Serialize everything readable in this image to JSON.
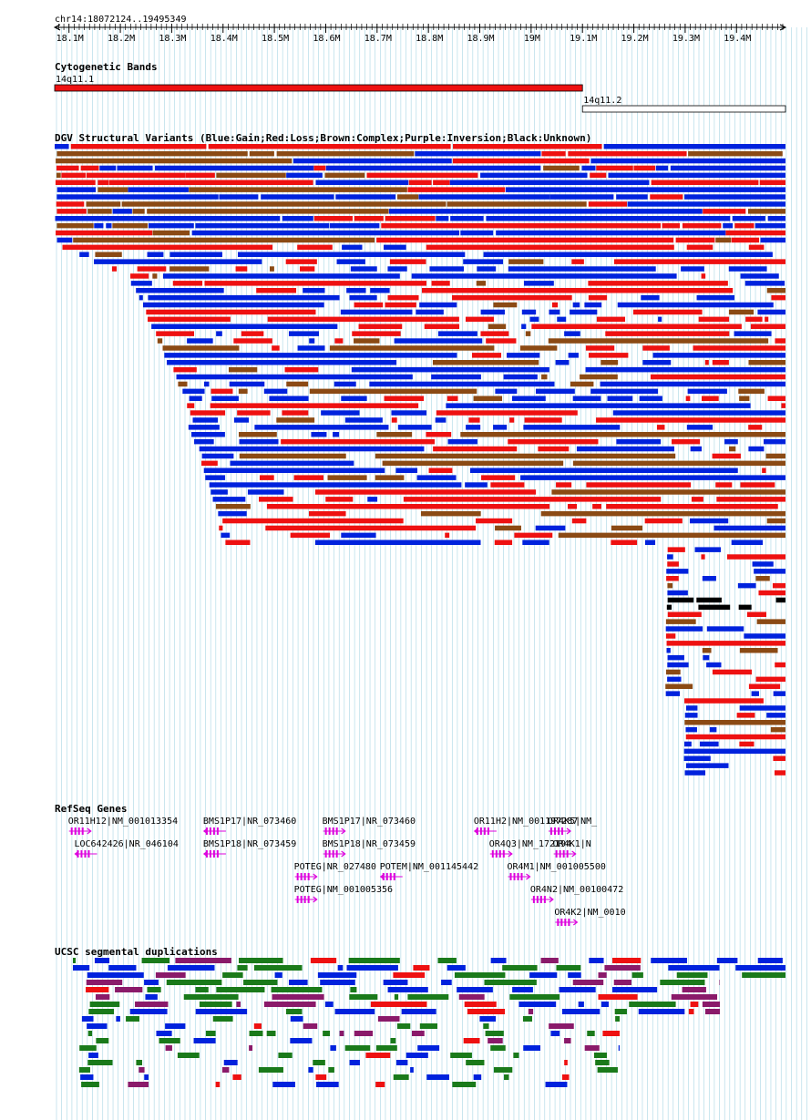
{
  "region": {
    "label": "chr14:18072124..19495349",
    "start": 18072124,
    "end": 19495349,
    "axis_ticks": [
      "18.1M",
      "18.2M",
      "18.3M",
      "18.4M",
      "18.5M",
      "18.6M",
      "18.7M",
      "18.8M",
      "18.9M",
      "19M",
      "19.1M",
      "19.2M",
      "19.3M",
      "19.4M"
    ]
  },
  "colors": {
    "gain": "#0022dd",
    "loss": "#ee1111",
    "complex": "#8b4a14",
    "unknown": "#000000",
    "gene": "#dd00dd",
    "segdup_green": "#1a7a1a",
    "segdup_purple": "#8a1a6a",
    "grid": "#a8d6e4"
  },
  "tracks": {
    "cytoband": {
      "title": "Cytogenetic Bands",
      "bands": [
        {
          "name": "14q11.1",
          "start": 18072124,
          "end": 19100000,
          "color": "#ee1111"
        },
        {
          "name": "14q11.2",
          "start": 19100000,
          "end": 19495349,
          "color": "#ffffff"
        }
      ]
    },
    "dgv": {
      "title": "DGV Structural Variants (Blue:Gain;Red:Loss;Brown:Complex;Purple:Inversion;Black:Unknown)"
    },
    "refseq": {
      "title": "RefSeq Genes",
      "genes": [
        {
          "label": "OR11H12|NM_001013354",
          "pos": 18100000,
          "row": 0,
          "strand": "+"
        },
        {
          "label": "LOC642426|NR_046104",
          "pos": 18112000,
          "row": 1,
          "strand": "-"
        },
        {
          "label": "BMS1P17|NR_073460",
          "pos": 18363000,
          "row": 0,
          "strand": "-"
        },
        {
          "label": "BMS1P18|NR_073459",
          "pos": 18363000,
          "row": 1,
          "strand": "-"
        },
        {
          "label": "POTEG|NR_027480",
          "pos": 18540000,
          "row": 2,
          "strand": "+"
        },
        {
          "label": "POTEG|NM_001005356",
          "pos": 18540000,
          "row": 3,
          "strand": "+"
        },
        {
          "label": "BMS1P17|NR_073460",
          "pos": 18595000,
          "row": 0,
          "strand": "+"
        },
        {
          "label": "BMS1P18|NR_073459",
          "pos": 18595000,
          "row": 1,
          "strand": "+"
        },
        {
          "label": "POTEM|NM_001145442",
          "pos": 18707000,
          "row": 2,
          "strand": "-"
        },
        {
          "label": "OR11H2|NM_001197287",
          "pos": 18890000,
          "row": 0,
          "strand": "-"
        },
        {
          "label": "OR4Q3|NM_172194",
          "pos": 18920000,
          "row": 1,
          "strand": "+"
        },
        {
          "label": "OR4M1|NM_001005500",
          "pos": 18955000,
          "row": 2,
          "strand": "+"
        },
        {
          "label": "OR4K5|NM_",
          "pos": 19034000,
          "row": 0,
          "strand": "+"
        },
        {
          "label": "OR4K1|N",
          "pos": 19044000,
          "row": 1,
          "strand": "+"
        },
        {
          "label": "OR4N2|NM_00100472",
          "pos": 19000000,
          "row": 3,
          "strand": "+"
        },
        {
          "label": "OR4K2|NM_0010",
          "pos": 19047000,
          "row": 4,
          "strand": "+"
        }
      ]
    },
    "segdup": {
      "title": "UCSC segmental duplications"
    }
  },
  "chart_data": {
    "type": "genome-browser",
    "region": "chr14:18072124..19495349",
    "x_unit": "bp",
    "xlim": [
      18072124,
      19495349
    ],
    "x_ticks": [
      18100000,
      18200000,
      18300000,
      18400000,
      18500000,
      18600000,
      18700000,
      18800000,
      18900000,
      19000000,
      19100000,
      19200000,
      19300000,
      19400000
    ],
    "x_tick_labels": [
      "18.1M",
      "18.2M",
      "18.3M",
      "18.4M",
      "18.5M",
      "18.6M",
      "18.7M",
      "18.8M",
      "18.9M",
      "19M",
      "19.1M",
      "19.2M",
      "19.3M",
      "19.4M"
    ],
    "tracks": [
      "Cytogenetic Bands",
      "DGV Structural Variants",
      "RefSeq Genes",
      "UCSC segmental duplications"
    ]
  }
}
